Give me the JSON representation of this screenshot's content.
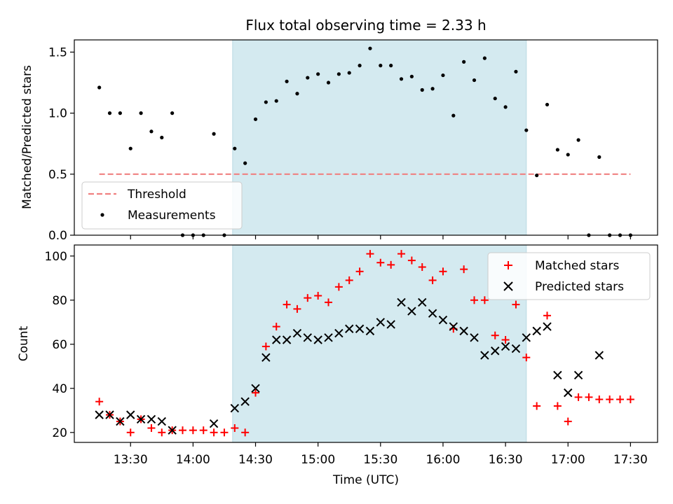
{
  "chart_data": [
    {
      "type": "scatter",
      "title": "Flux total observing time = 2.33 h",
      "xlabel": "",
      "ylabel": "Matched/Predicted stars",
      "xlim": [
        "13:03",
        "17:43"
      ],
      "ylim": [
        0,
        1.6
      ],
      "yticks": [
        0.0,
        0.5,
        1.0,
        1.5
      ],
      "ytick_labels": [
        "0.0",
        "0.5",
        "1.0",
        "1.5"
      ],
      "shaded_span": [
        "14:19",
        "16:40"
      ],
      "shaded_color": "#d4eaf0",
      "threshold": {
        "name": "Threshold",
        "value": 0.5,
        "x_start": "13:15",
        "x_end": "17:30",
        "color": "#f08080",
        "style": "dashed"
      },
      "legend_position": "lower left",
      "series": [
        {
          "name": "Measurements",
          "color": "#000000",
          "marker": "dot",
          "x": [
            "13:15",
            "13:20",
            "13:25",
            "13:30",
            "13:35",
            "13:40",
            "13:45",
            "13:50",
            "13:55",
            "14:00",
            "14:05",
            "14:10",
            "14:15",
            "14:20",
            "14:25",
            "14:30",
            "14:35",
            "14:40",
            "14:45",
            "14:50",
            "14:55",
            "15:00",
            "15:05",
            "15:10",
            "15:15",
            "15:20",
            "15:25",
            "15:30",
            "15:35",
            "15:40",
            "15:45",
            "15:50",
            "15:55",
            "16:00",
            "16:05",
            "16:10",
            "16:15",
            "16:20",
            "16:25",
            "16:30",
            "16:35",
            "16:40",
            "16:45",
            "16:50",
            "16:55",
            "17:00",
            "17:05",
            "17:10",
            "17:15",
            "17:20",
            "17:25",
            "17:30"
          ],
          "values": [
            1.21,
            1.0,
            1.0,
            0.71,
            1.0,
            0.85,
            0.8,
            1.0,
            0.0,
            0.0,
            0.0,
            0.83,
            0.0,
            0.71,
            0.59,
            0.95,
            1.09,
            1.1,
            1.26,
            1.16,
            1.29,
            1.32,
            1.25,
            1.32,
            1.33,
            1.39,
            1.53,
            1.39,
            1.39,
            1.28,
            1.3,
            1.19,
            1.2,
            1.31,
            0.98,
            1.42,
            1.27,
            1.45,
            1.12,
            1.05,
            1.34,
            0.86,
            0.49,
            1.07,
            0.7,
            0.66,
            0.78,
            0.0,
            0.64,
            0.0,
            0.0,
            0.0
          ]
        }
      ]
    },
    {
      "type": "scatter",
      "title": "",
      "xlabel": "Time (UTC)",
      "ylabel": "Count",
      "xlim": [
        "13:03",
        "17:43"
      ],
      "ylim": [
        15.5,
        105
      ],
      "xticks": [
        "13:30",
        "14:00",
        "14:30",
        "15:00",
        "15:30",
        "16:00",
        "16:30",
        "17:00",
        "17:30"
      ],
      "yticks": [
        20,
        40,
        60,
        80,
        100
      ],
      "ytick_labels": [
        "20",
        "40",
        "60",
        "80",
        "100"
      ],
      "shaded_span": [
        "14:19",
        "16:40"
      ],
      "legend_position": "upper right",
      "series": [
        {
          "name": "Matched stars",
          "color": "#ff0000",
          "marker": "plus",
          "x": [
            "13:15",
            "13:20",
            "13:25",
            "13:30",
            "13:35",
            "13:40",
            "13:45",
            "13:50",
            "13:55",
            "14:00",
            "14:05",
            "14:10",
            "14:15",
            "14:20",
            "14:25",
            "14:30",
            "14:35",
            "14:40",
            "14:45",
            "14:50",
            "14:55",
            "15:00",
            "15:05",
            "15:10",
            "15:15",
            "15:20",
            "15:25",
            "15:30",
            "15:35",
            "15:40",
            "15:45",
            "15:50",
            "15:55",
            "16:00",
            "16:05",
            "16:10",
            "16:15",
            "16:20",
            "16:25",
            "16:30",
            "16:35",
            "16:40",
            "16:45",
            "16:50",
            "16:55",
            "17:00",
            "17:05",
            "17:10",
            "17:15",
            "17:20",
            "17:25",
            "17:30"
          ],
          "values": [
            34,
            28,
            25,
            20,
            26,
            22,
            20,
            21,
            21,
            21,
            21,
            20,
            20,
            22,
            20,
            38,
            59,
            68,
            78,
            76,
            81,
            82,
            79,
            86,
            89,
            93,
            101,
            97,
            96,
            101,
            98,
            95,
            89,
            93,
            67,
            94,
            80,
            80,
            64,
            62,
            78,
            54,
            32,
            73,
            32,
            25,
            36,
            36,
            35,
            35,
            35,
            35
          ]
        },
        {
          "name": "Predicted stars",
          "color": "#000000",
          "marker": "x",
          "x": [
            "13:15",
            "13:20",
            "13:25",
            "13:30",
            "13:35",
            "13:40",
            "13:45",
            "13:50",
            "14:10",
            "14:20",
            "14:25",
            "14:30",
            "14:35",
            "14:40",
            "14:45",
            "14:50",
            "14:55",
            "15:00",
            "15:05",
            "15:10",
            "15:15",
            "15:20",
            "15:25",
            "15:30",
            "15:35",
            "15:40",
            "15:45",
            "15:50",
            "15:55",
            "16:00",
            "16:05",
            "16:10",
            "16:15",
            "16:20",
            "16:25",
            "16:30",
            "16:35",
            "16:40",
            "16:45",
            "16:50",
            "16:55",
            "17:00",
            "17:05",
            "17:15"
          ],
          "values": [
            28,
            28,
            25,
            28,
            26,
            26,
            25,
            21,
            24,
            31,
            34,
            40,
            54,
            62,
            62,
            65,
            63,
            62,
            63,
            65,
            67,
            67,
            66,
            70,
            69,
            79,
            75,
            79,
            74,
            71,
            68,
            66,
            63,
            55,
            57,
            59,
            58,
            63,
            66,
            68,
            46,
            38,
            46,
            55
          ]
        }
      ]
    }
  ]
}
